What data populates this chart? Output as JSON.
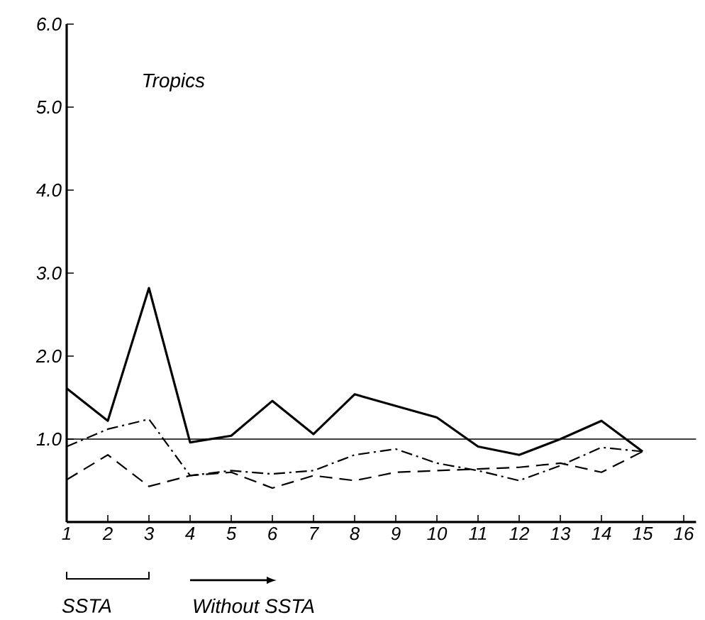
{
  "chart_data": {
    "type": "line",
    "x": [
      1,
      2,
      3,
      4,
      5,
      6,
      7,
      8,
      9,
      10,
      11,
      12,
      13,
      14,
      15
    ],
    "series": [
      {
        "color": "#000000",
        "line_style": "solid",
        "values": [
          1.61,
          1.22,
          2.82,
          0.96,
          1.04,
          1.46,
          1.06,
          1.54,
          1.4,
          1.26,
          0.91,
          0.81,
          1.0,
          1.22,
          0.85
        ]
      },
      {
        "color": "#000000",
        "line_style": "dashdot",
        "values": [
          0.91,
          1.12,
          1.24,
          0.56,
          0.62,
          0.58,
          0.62,
          0.81,
          0.88,
          0.71,
          0.62,
          0.5,
          0.68,
          0.9,
          0.85
        ]
      },
      {
        "color": "#000000",
        "line_style": "dashed",
        "values": [
          0.51,
          0.81,
          0.43,
          0.56,
          0.6,
          0.41,
          0.56,
          0.5,
          0.6,
          0.62,
          0.64,
          0.66,
          0.71,
          0.6,
          0.85
        ]
      }
    ],
    "xlim": [
      1,
      16.3
    ],
    "xticks": [
      1,
      2,
      3,
      4,
      5,
      6,
      7,
      8,
      9,
      10,
      11,
      12,
      13,
      14,
      15,
      16
    ],
    "ylim": [
      0,
      6
    ],
    "yticks": [
      {
        "value": 1,
        "label": "1.0"
      },
      {
        "value": 2,
        "label": "2.0"
      },
      {
        "value": 3,
        "label": "3.0"
      },
      {
        "value": 4,
        "label": "4.0"
      },
      {
        "value": 5,
        "label": "5.0"
      },
      {
        "value": 6,
        "label": "6.0"
      }
    ],
    "ref_lines": [
      {
        "axis": "y",
        "value": 1
      }
    ],
    "annotations": [
      "Tropics",
      "SSTA",
      "Without SSTA"
    ],
    "grid": false,
    "marker": "none"
  }
}
